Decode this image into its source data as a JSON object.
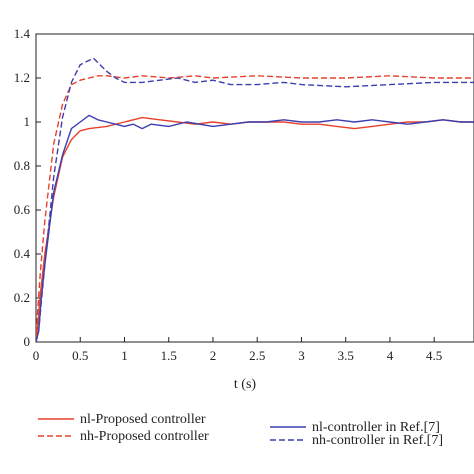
{
  "chart_data": {
    "type": "line",
    "xlabel": "t (s)",
    "ylabel": "",
    "xlim": [
      0,
      4.95
    ],
    "ylim": [
      0,
      1.4
    ],
    "xticks": [
      0,
      0.5,
      1,
      1.5,
      2,
      2.5,
      3,
      3.5,
      4,
      4.5
    ],
    "xtick_labels": [
      "0",
      "0.5",
      "1",
      "1.5",
      "2",
      "2.5",
      "3",
      "3.5",
      "4",
      "4.5"
    ],
    "yticks": [
      0,
      0.2,
      0.4,
      0.6,
      0.8,
      1,
      1.2,
      1.4
    ],
    "ytick_labels": [
      "0",
      "0.2",
      "0.4",
      "0.6",
      "0.8",
      "1",
      "1.2",
      "1.4"
    ],
    "grid": false,
    "legend_position": "bottom",
    "colors": {
      "proposed": "#e8402c",
      "reference": "#3b3fb0"
    },
    "series": [
      {
        "name": "nl-Proposed controller",
        "color": "#e8402c",
        "style": "solid",
        "x": [
          0,
          0.02,
          0.05,
          0.1,
          0.2,
          0.3,
          0.4,
          0.5,
          0.6,
          0.8,
          1.0,
          1.2,
          1.4,
          1.6,
          1.8,
          2.0,
          2.2,
          2.4,
          2.6,
          2.8,
          3.0,
          3.2,
          3.4,
          3.6,
          3.8,
          4.0,
          4.2,
          4.4,
          4.6,
          4.8,
          4.95
        ],
        "y": [
          0,
          0.08,
          0.22,
          0.4,
          0.66,
          0.84,
          0.92,
          0.96,
          0.97,
          0.98,
          1.0,
          1.02,
          1.01,
          1.0,
          0.99,
          1.0,
          0.99,
          1.0,
          1.0,
          1.0,
          0.99,
          0.99,
          0.98,
          0.97,
          0.98,
          0.99,
          1.0,
          1.0,
          1.01,
          1.0,
          1.0
        ]
      },
      {
        "name": "nh-Proposed controller",
        "color": "#e8402c",
        "style": "dashed",
        "x": [
          0,
          0.02,
          0.05,
          0.1,
          0.2,
          0.3,
          0.4,
          0.5,
          0.6,
          0.7,
          0.8,
          1.0,
          1.2,
          1.5,
          1.8,
          2.0,
          2.5,
          3.0,
          3.5,
          4.0,
          4.5,
          4.95
        ],
        "y": [
          0,
          0.15,
          0.32,
          0.55,
          0.9,
          1.08,
          1.17,
          1.19,
          1.2,
          1.21,
          1.21,
          1.2,
          1.21,
          1.2,
          1.21,
          1.2,
          1.21,
          1.2,
          1.2,
          1.21,
          1.2,
          1.2
        ]
      },
      {
        "name": "nl-controller in Ref.[7]",
        "color": "#3b3fb0",
        "style": "solid",
        "x": [
          0,
          0.03,
          0.06,
          0.1,
          0.2,
          0.3,
          0.4,
          0.5,
          0.6,
          0.7,
          0.8,
          0.9,
          1.0,
          1.1,
          1.2,
          1.3,
          1.5,
          1.7,
          2.0,
          2.2,
          2.4,
          2.6,
          2.8,
          3.0,
          3.2,
          3.4,
          3.6,
          3.8,
          4.0,
          4.2,
          4.4,
          4.6,
          4.8,
          4.95
        ],
        "y": [
          0,
          0.05,
          0.2,
          0.35,
          0.68,
          0.85,
          0.97,
          1.0,
          1.03,
          1.01,
          1.0,
          0.99,
          0.98,
          0.99,
          0.97,
          0.99,
          0.98,
          1.0,
          0.98,
          0.99,
          1.0,
          1.0,
          1.01,
          1.0,
          1.0,
          1.01,
          1.0,
          1.01,
          1.0,
          0.99,
          1.0,
          1.01,
          1.0,
          1.0
        ]
      },
      {
        "name": "nh-controller in Ref.[7]",
        "color": "#3b3fb0",
        "style": "dashed",
        "x": [
          0,
          0.03,
          0.06,
          0.1,
          0.2,
          0.3,
          0.4,
          0.5,
          0.6,
          0.65,
          0.7,
          0.8,
          0.9,
          1.0,
          1.2,
          1.4,
          1.6,
          1.8,
          2.0,
          2.2,
          2.5,
          2.8,
          3.0,
          3.5,
          4.0,
          4.5,
          4.95
        ],
        "y": [
          0,
          0.05,
          0.18,
          0.35,
          0.75,
          1.02,
          1.18,
          1.26,
          1.28,
          1.29,
          1.27,
          1.23,
          1.2,
          1.18,
          1.18,
          1.19,
          1.2,
          1.18,
          1.19,
          1.17,
          1.17,
          1.18,
          1.17,
          1.16,
          1.17,
          1.18,
          1.18
        ]
      }
    ]
  }
}
